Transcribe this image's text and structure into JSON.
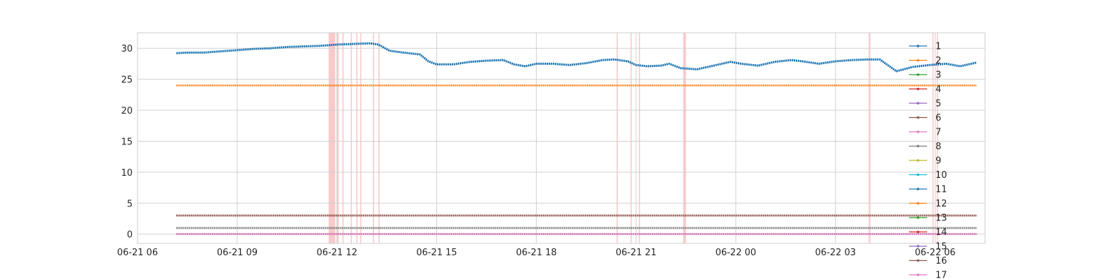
{
  "chart_data": {
    "type": "line",
    "title": "",
    "xlabel": "",
    "ylabel": "",
    "grid": true,
    "legend_position": "right",
    "xlim": [
      "06-21 06:00",
      "06-22 07:30"
    ],
    "ylim": [
      -1.5,
      32.5
    ],
    "x_ticks": [
      "06-21 06",
      "06-21 09",
      "06-21 12",
      "06-21 15",
      "06-21 18",
      "06-21 21",
      "06-22 00",
      "06-22 03",
      "06-22 06"
    ],
    "y_ticks": [
      0,
      5,
      10,
      15,
      20,
      25,
      30
    ],
    "series_time_range": [
      "06-21 07:10",
      "06-22 07:15"
    ],
    "series": [
      {
        "name": "1",
        "color": "#1f77b4",
        "points": [
          [
            "06-21 07:10",
            29.2
          ],
          [
            "06-21 07:30",
            29.3
          ],
          [
            "06-21 08:00",
            29.3
          ],
          [
            "06-21 08:30",
            29.5
          ],
          [
            "06-21 09:00",
            29.7
          ],
          [
            "06-21 09:30",
            29.9
          ],
          [
            "06-21 10:00",
            30.0
          ],
          [
            "06-21 10:30",
            30.2
          ],
          [
            "06-21 11:00",
            30.3
          ],
          [
            "06-21 11:30",
            30.4
          ],
          [
            "06-21 12:00",
            30.6
          ],
          [
            "06-21 12:30",
            30.7
          ],
          [
            "06-21 13:00",
            30.8
          ],
          [
            "06-21 13:15",
            30.6
          ],
          [
            "06-21 13:35",
            29.6
          ],
          [
            "06-21 14:00",
            29.3
          ],
          [
            "06-21 14:30",
            29.0
          ],
          [
            "06-21 14:45",
            27.9
          ],
          [
            "06-21 15:00",
            27.4
          ],
          [
            "06-21 15:30",
            27.4
          ],
          [
            "06-21 16:00",
            27.8
          ],
          [
            "06-21 16:30",
            28.0
          ],
          [
            "06-21 17:00",
            28.1
          ],
          [
            "06-21 17:20",
            27.4
          ],
          [
            "06-21 17:40",
            27.1
          ],
          [
            "06-21 18:00",
            27.5
          ],
          [
            "06-21 18:30",
            27.5
          ],
          [
            "06-21 19:00",
            27.3
          ],
          [
            "06-21 19:30",
            27.6
          ],
          [
            "06-21 20:00",
            28.1
          ],
          [
            "06-21 20:20",
            28.2
          ],
          [
            "06-21 20:45",
            27.9
          ],
          [
            "06-21 21:00",
            27.3
          ],
          [
            "06-21 21:20",
            27.1
          ],
          [
            "06-21 21:45",
            27.2
          ],
          [
            "06-21 22:00",
            27.5
          ],
          [
            "06-21 22:20",
            26.8
          ],
          [
            "06-21 22:50",
            26.6
          ],
          [
            "06-21 23:20",
            27.2
          ],
          [
            "06-21 23:50",
            27.8
          ],
          [
            "06-22 00:10",
            27.5
          ],
          [
            "06-22 00:40",
            27.2
          ],
          [
            "06-22 01:10",
            27.8
          ],
          [
            "06-22 01:40",
            28.1
          ],
          [
            "06-22 02:00",
            27.9
          ],
          [
            "06-22 02:30",
            27.5
          ],
          [
            "06-22 03:00",
            27.9
          ],
          [
            "06-22 03:30",
            28.1
          ],
          [
            "06-22 04:00",
            28.2
          ],
          [
            "06-22 04:20",
            28.2
          ],
          [
            "06-22 04:50",
            26.3
          ],
          [
            "06-22 05:20",
            27.0
          ],
          [
            "06-22 05:50",
            27.3
          ],
          [
            "06-22 06:20",
            27.5
          ],
          [
            "06-22 06:45",
            27.1
          ],
          [
            "06-22 07:00",
            27.4
          ],
          [
            "06-22 07:15",
            27.7
          ]
        ]
      },
      {
        "name": "2",
        "color": "#ff7f0e",
        "constant": 24.0
      },
      {
        "name": "3",
        "color": "#2ca02c",
        "constant": 1.0
      },
      {
        "name": "4",
        "color": "#d62728",
        "constant": 3.0
      },
      {
        "name": "5",
        "color": "#9467bd",
        "constant": 1.0
      },
      {
        "name": "6",
        "color": "#8c564b",
        "constant": 3.0
      },
      {
        "name": "7",
        "color": "#e377c2",
        "constant": 0.0
      },
      {
        "name": "8",
        "color": "#7f7f7f",
        "constant": 1.0
      },
      {
        "name": "9",
        "color": "#bcbd22",
        "constant": 0.0
      },
      {
        "name": "10",
        "color": "#17becf",
        "constant": 0.0
      },
      {
        "name": "11",
        "color": "#1f77b4",
        "constant": 0.0
      },
      {
        "name": "12",
        "color": "#ff7f0e",
        "constant": 0.0
      },
      {
        "name": "13",
        "color": "#2ca02c",
        "constant": 0.0
      },
      {
        "name": "14",
        "color": "#d62728",
        "constant": 0.0
      },
      {
        "name": "15",
        "color": "#9467bd",
        "constant": 0.0
      },
      {
        "name": "16",
        "color": "#8c564b",
        "constant": 3.0
      },
      {
        "name": "17",
        "color": "#e377c2",
        "constant": 0.0
      }
    ],
    "highlight_bands": [
      [
        "06-21 11:45",
        "06-21 11:57"
      ],
      [
        "06-21 12:00",
        "06-21 12:03"
      ],
      [
        "06-21 12:10",
        "06-21 12:12"
      ],
      [
        "06-21 12:25",
        "06-21 12:27"
      ],
      [
        "06-21 12:35",
        "06-21 12:37"
      ],
      [
        "06-21 12:42",
        "06-21 12:44"
      ],
      [
        "06-21 13:05",
        "06-21 13:07"
      ],
      [
        "06-21 13:15",
        "06-21 13:17"
      ],
      [
        "06-21 20:25",
        "06-21 20:27"
      ],
      [
        "06-21 20:50",
        "06-21 20:52"
      ],
      [
        "06-21 21:05",
        "06-21 21:07"
      ],
      [
        "06-21 22:25",
        "06-21 22:30"
      ],
      [
        "06-22 04:00",
        "06-22 04:03"
      ],
      [
        "06-22 05:55",
        "06-22 05:57"
      ],
      [
        "06-22 06:03",
        "06-22 06:05"
      ]
    ],
    "highlight_color": "#f4a6a6"
  }
}
